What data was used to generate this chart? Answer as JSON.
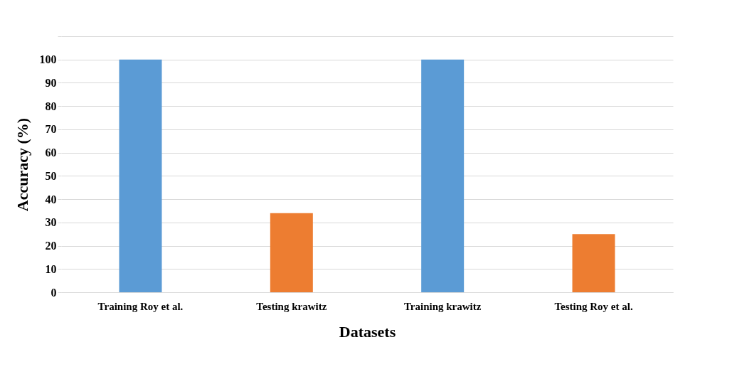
{
  "chart_data": {
    "type": "bar",
    "categories": [
      "Training Roy et al.",
      "Testing krawitz",
      "Training krawitz",
      "Testing Roy et al."
    ],
    "values": [
      100,
      34,
      100,
      25
    ],
    "colors": [
      "#5b9bd5",
      "#ed7d31",
      "#5b9bd5",
      "#ed7d31"
    ],
    "xlabel": "Datasets",
    "ylabel": "Accuracy (%)",
    "ylim": [
      0,
      110
    ],
    "yticks": [
      0,
      10,
      20,
      30,
      40,
      50,
      60,
      70,
      80,
      90,
      100,
      {
        "value": 110,
        "label": null
      }
    ],
    "grid": "y",
    "legend": false
  }
}
